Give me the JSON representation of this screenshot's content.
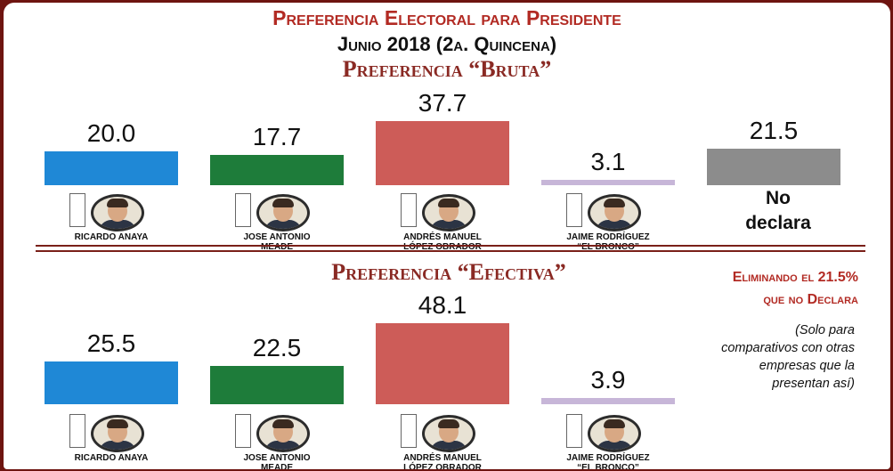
{
  "header": {
    "title": "Preferencia Electoral para Presidente",
    "date": "Junio 2018 (2a. Quincena)"
  },
  "colors": {
    "anaya": "#1f88d6",
    "meade": "#1e7c3a",
    "amlo": "#cd5c58",
    "bronco": "#c7b6d8",
    "no_declara": "#8c8c8c",
    "title_red": "#b22a23"
  },
  "candidates": [
    {
      "key": "anaya",
      "name_lines": [
        "RICARDO ANAYA"
      ]
    },
    {
      "key": "meade",
      "name_lines": [
        "JOSE ANTONIO",
        "MEADE"
      ]
    },
    {
      "key": "amlo",
      "name_lines": [
        "ANDRÉS MANUEL",
        "LÓPEZ OBRADOR"
      ]
    },
    {
      "key": "bronco",
      "name_lines": [
        "JAIME RODRÍGUEZ",
        "“EL BRONCO”"
      ]
    }
  ],
  "no_declara_label": [
    "No",
    "declara"
  ],
  "note": {
    "title_lines": [
      "Eliminando el 21.5%",
      "que no Declara"
    ],
    "body_lines": [
      "(Solo para",
      "comparativos con otras",
      "empresas que la",
      "presentan así)"
    ]
  },
  "chart_data": [
    {
      "type": "bar",
      "title": "Preferencia “Bruta”",
      "categories": [
        "RICARDO ANAYA",
        "JOSE ANTONIO MEADE",
        "ANDRÉS MANUEL LÓPEZ OBRADOR",
        "JAIME RODRÍGUEZ “EL BRONCO”",
        "No declara"
      ],
      "values": [
        20.0,
        17.7,
        37.7,
        3.1,
        21.5
      ],
      "labels": [
        "20.0",
        "17.7",
        "37.7",
        "3.1",
        "21.5"
      ],
      "colors": [
        "#1f88d6",
        "#1e7c3a",
        "#cd5c58",
        "#c7b6d8",
        "#8c8c8c"
      ]
    },
    {
      "type": "bar",
      "title": "Preferencia “Efectiva”",
      "categories": [
        "RICARDO ANAYA",
        "JOSE ANTONIO MEADE",
        "ANDRÉS MANUEL LÓPEZ OBRADOR",
        "JAIME RODRÍGUEZ “EL BRONCO”"
      ],
      "values": [
        25.5,
        22.5,
        48.1,
        3.9
      ],
      "labels": [
        "25.5",
        "22.5",
        "48.1",
        "3.9"
      ],
      "colors": [
        "#1f88d6",
        "#1e7c3a",
        "#cd5c58",
        "#c7b6d8"
      ]
    }
  ]
}
